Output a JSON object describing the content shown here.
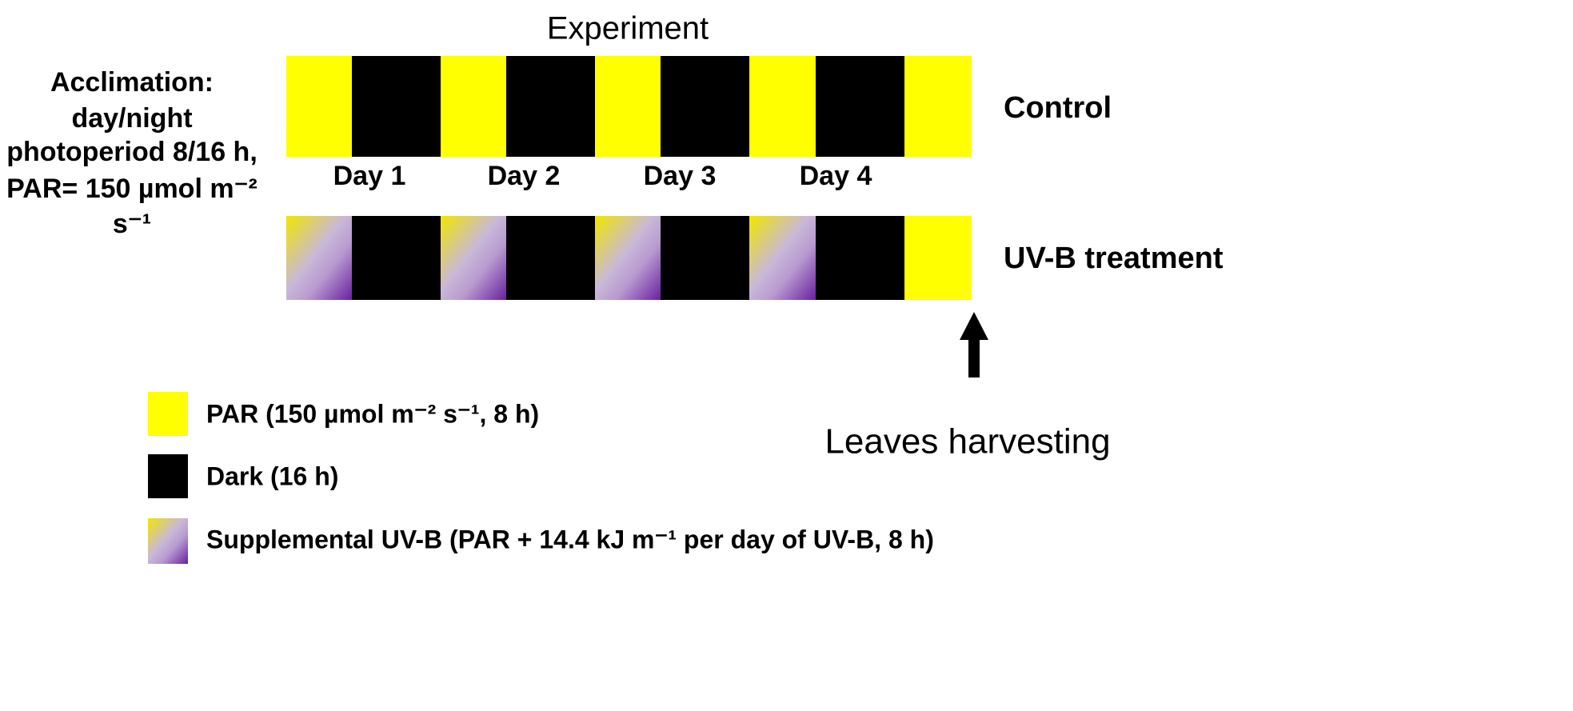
{
  "title": "Experiment",
  "acclimation": [
    "Acclimation:",
    "day/night",
    "photoperiod 8/16 h,",
    "PAR= 150 µmol m⁻²",
    "s⁻¹"
  ],
  "days": [
    "Day 1",
    "Day 2",
    "Day 3",
    "Day 4"
  ],
  "rows": [
    "Control",
    "UV-B treatment"
  ],
  "harvest": "Leaves harvesting",
  "legend": [
    "PAR (150 µmol m⁻² s⁻¹, 8 h)",
    "Dark (16 h)",
    "Supplemental UV-B (PAR + 14.4 kJ m⁻¹ per day of UV-B, 8 h)"
  ]
}
